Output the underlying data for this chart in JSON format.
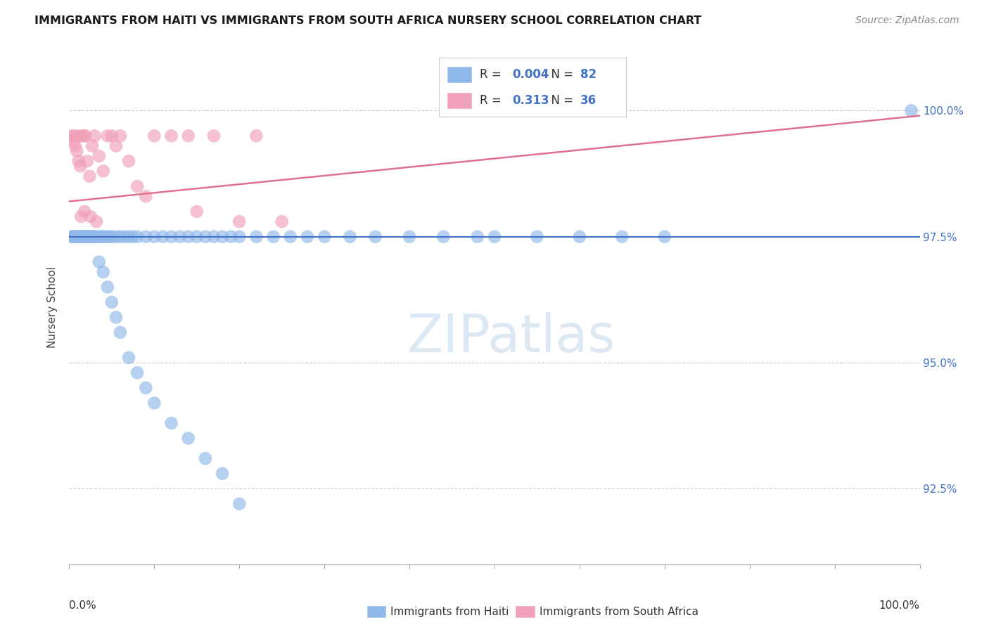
{
  "title": "IMMIGRANTS FROM HAITI VS IMMIGRANTS FROM SOUTH AFRICA NURSERY SCHOOL CORRELATION CHART",
  "source": "Source: ZipAtlas.com",
  "ylabel": "Nursery School",
  "watermark": "ZIPatlas",
  "haiti_R": "0.004",
  "haiti_N": "82",
  "sa_R": "0.313",
  "sa_N": "36",
  "xlim": [
    0,
    100
  ],
  "ylim": [
    91.0,
    101.2
  ],
  "ytick_vals": [
    92.5,
    95.0,
    97.5,
    100.0
  ],
  "haiti_scatter_x": [
    0.3,
    0.4,
    0.5,
    0.6,
    0.7,
    0.8,
    0.9,
    1.0,
    1.1,
    1.2,
    1.3,
    1.4,
    1.5,
    1.6,
    1.7,
    1.8,
    1.9,
    2.0,
    2.1,
    2.2,
    2.3,
    2.5,
    2.7,
    2.9,
    3.0,
    3.2,
    3.5,
    3.8,
    4.0,
    4.2,
    4.5,
    4.8,
    5.0,
    5.5,
    6.0,
    6.5,
    7.0,
    7.5,
    8.0,
    9.0,
    10.0,
    11.0,
    12.0,
    13.0,
    14.0,
    15.0,
    16.0,
    17.0,
    18.0,
    19.0,
    20.0,
    22.0,
    24.0,
    26.0,
    28.0,
    30.0,
    33.0,
    36.0,
    40.0,
    44.0,
    48.0,
    50.0,
    55.0,
    60.0,
    65.0,
    70.0,
    3.5,
    4.0,
    4.5,
    5.0,
    5.5,
    6.0,
    7.0,
    8.0,
    9.0,
    10.0,
    12.0,
    14.0,
    16.0,
    18.0,
    20.0,
    99.0
  ],
  "haiti_scatter_y": [
    97.5,
    97.5,
    97.5,
    97.5,
    97.5,
    97.5,
    97.5,
    97.5,
    97.5,
    97.5,
    97.5,
    97.5,
    97.5,
    97.5,
    97.5,
    97.5,
    97.5,
    97.5,
    97.5,
    97.5,
    97.5,
    97.5,
    97.5,
    97.5,
    97.5,
    97.5,
    97.5,
    97.5,
    97.5,
    97.5,
    97.5,
    97.5,
    97.5,
    97.5,
    97.5,
    97.5,
    97.5,
    97.5,
    97.5,
    97.5,
    97.5,
    97.5,
    97.5,
    97.5,
    97.5,
    97.5,
    97.5,
    97.5,
    97.5,
    97.5,
    97.5,
    97.5,
    97.5,
    97.5,
    97.5,
    97.5,
    97.5,
    97.5,
    97.5,
    97.5,
    97.5,
    97.5,
    97.5,
    97.5,
    97.5,
    97.5,
    97.0,
    96.8,
    96.5,
    96.2,
    95.9,
    95.6,
    95.1,
    94.8,
    94.5,
    94.2,
    93.8,
    93.5,
    93.1,
    92.8,
    92.2,
    100.0
  ],
  "sa_scatter_x": [
    0.3,
    0.5,
    0.7,
    0.9,
    1.1,
    1.3,
    1.5,
    1.7,
    1.9,
    2.1,
    2.4,
    2.7,
    3.0,
    3.5,
    4.0,
    4.5,
    5.0,
    5.5,
    6.0,
    7.0,
    8.0,
    9.0,
    1.8,
    2.5,
    3.2,
    10.0,
    12.0,
    14.0,
    0.6,
    1.0,
    1.4,
    15.0,
    17.0,
    20.0,
    25.0,
    22.0
  ],
  "sa_scatter_y": [
    99.5,
    99.4,
    99.3,
    99.2,
    99.0,
    98.9,
    99.5,
    99.5,
    99.5,
    99.0,
    98.7,
    99.3,
    99.5,
    99.1,
    98.8,
    99.5,
    99.5,
    99.3,
    99.5,
    99.0,
    98.5,
    98.3,
    98.0,
    97.9,
    97.8,
    99.5,
    99.5,
    99.5,
    99.5,
    99.5,
    97.9,
    98.0,
    99.5,
    97.8,
    97.8,
    99.5
  ],
  "blue_line_y": 97.5,
  "pink_line_x": [
    0,
    100
  ],
  "pink_line_y": [
    98.2,
    99.9
  ],
  "colors": {
    "haiti_scatter": "#90b8e8",
    "sa_scatter": "#f0a0b8",
    "haiti_line": "#4472c4",
    "sa_line": "#e07090",
    "grid": "#cccccc",
    "watermark": "#dde8f5",
    "tick_right": "#4472c4",
    "legend_value": "#4472c4",
    "legend_label": "#333333"
  }
}
